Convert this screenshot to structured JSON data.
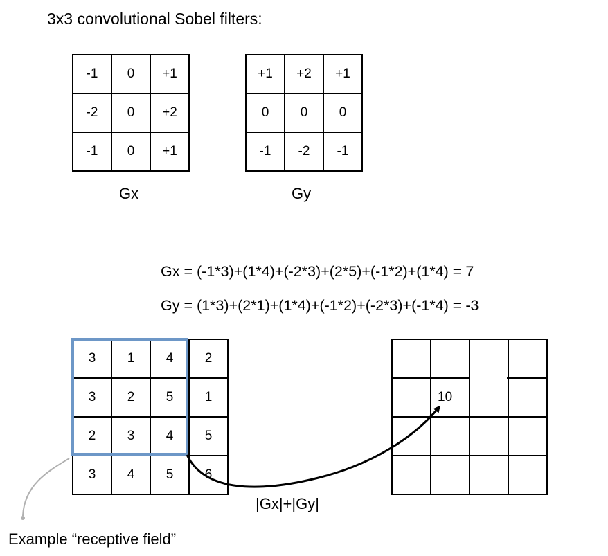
{
  "title": "3x3 convolutional Sobel filters:",
  "filters": {
    "gx": {
      "label": "Gx",
      "rows": [
        [
          "-1",
          "0",
          "+1"
        ],
        [
          "-2",
          "0",
          "+2"
        ],
        [
          "-1",
          "0",
          "+1"
        ]
      ]
    },
    "gy": {
      "label": "Gy",
      "rows": [
        [
          "+1",
          "+2",
          "+1"
        ],
        [
          "0",
          "0",
          "0"
        ],
        [
          "-1",
          "-2",
          "-1"
        ]
      ]
    }
  },
  "equations": {
    "gx": "Gx = (-1*3)+(1*4)+(-2*3)+(2*5)+(-1*2)+(1*4) = 7",
    "gy": "Gy = (1*3)+(2*1)+(1*4)+(-1*2)+(-2*3)+(-1*4) = -3"
  },
  "input": {
    "rows": [
      [
        "3",
        "1",
        "4",
        "2"
      ],
      [
        "3",
        "2",
        "5",
        "1"
      ],
      [
        "2",
        "3",
        "4",
        "5"
      ],
      [
        "3",
        "4",
        "5",
        "6"
      ]
    ]
  },
  "output": {
    "value": "10"
  },
  "magnitude_label": "|Gx|+|Gy|",
  "receptive_field_label": "Example “receptive field”",
  "colors": {
    "receptive_field_border": "#6d97c7",
    "pointer_line": "#b0b0b0"
  }
}
